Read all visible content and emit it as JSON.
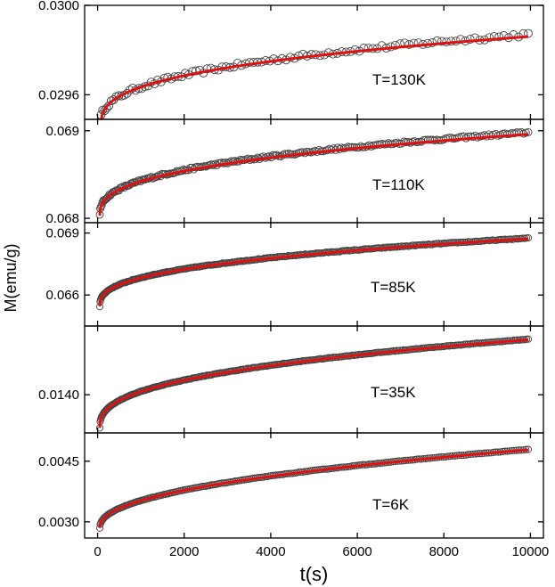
{
  "chart_data": {
    "type": "scatter",
    "xlabel": "t(s)",
    "ylabel": "M(emu/g)",
    "xlim": [
      -300,
      10300
    ],
    "x_ticks": [
      0,
      2000,
      4000,
      6000,
      8000,
      10000
    ],
    "x_tick_labels": [
      "0",
      "2000",
      "4000",
      "6000",
      "8000",
      "10000"
    ],
    "colors": {
      "data_marker": "#444444",
      "fit_line": "#e01010",
      "frame": "#000000"
    },
    "panels": [
      {
        "label": "T=130K",
        "ylim": [
          0.02949,
          0.03
        ],
        "y_ticks": [
          0.0296,
          0.03
        ],
        "y_tick_labels": [
          "0.0296",
          "0.0300"
        ],
        "data": {
          "t_start": 50,
          "t_end": 9950,
          "m_start": 0.02945,
          "m_end": 0.02987,
          "power": 0.35,
          "noise": 9e-06,
          "n_points": 110,
          "marker_radius": 4.5
        },
        "fit": {
          "t_start": 80,
          "t_end": 9950,
          "m_start": 0.02946,
          "m_end": 0.02986
        }
      },
      {
        "label": "T=110K",
        "ylim": [
          0.06795,
          0.06913
        ],
        "y_ticks": [
          0.068,
          0.069
        ],
        "y_tick_labels": [
          "0.068",
          "0.069"
        ],
        "data": {
          "t_start": 50,
          "t_end": 9950,
          "m_start": 0.06803,
          "m_end": 0.06898,
          "power": 0.37,
          "noise": 1.3e-05,
          "n_points": 230,
          "marker_radius": 4
        },
        "fit": {
          "t_start": 50,
          "t_end": 9950,
          "m_start": 0.06803,
          "m_end": 0.06896
        }
      },
      {
        "label": "T=85K",
        "ylim": [
          0.0645,
          0.0695
        ],
        "y_ticks": [
          0.066,
          0.069
        ],
        "y_tick_labels": [
          "0.066",
          "0.069"
        ],
        "data": {
          "t_start": 50,
          "t_end": 9950,
          "m_start": 0.06545,
          "m_end": 0.06875,
          "power": 0.37,
          "noise": 2e-05,
          "n_points": 300,
          "marker_radius": 3.6
        },
        "fit": {
          "t_start": 50,
          "t_end": 9950,
          "m_start": 0.06545,
          "m_end": 0.06872
        }
      },
      {
        "label": "T=35K",
        "ylim": [
          0.0125,
          0.0167
        ],
        "y_ticks": [
          0.014
        ],
        "y_tick_labels": [
          "0.0140"
        ],
        "data": {
          "t_start": 50,
          "t_end": 9950,
          "m_start": 0.0127,
          "m_end": 0.01618,
          "power": 0.38,
          "noise": 1.2e-05,
          "n_points": 300,
          "marker_radius": 3.6
        },
        "fit": {
          "t_start": 50,
          "t_end": 9950,
          "m_start": 0.0127,
          "m_end": 0.01616
        }
      },
      {
        "label": "T=6K",
        "ylim": [
          0.0026,
          0.0052
        ],
        "y_ticks": [
          0.003,
          0.0045
        ],
        "y_tick_labels": [
          "0.0030",
          "0.0045"
        ],
        "data": {
          "t_start": 50,
          "t_end": 9950,
          "m_start": 0.00285,
          "m_end": 0.00479,
          "power": 0.45,
          "noise": 6e-06,
          "n_points": 230,
          "marker_radius": 3.6
        },
        "fit": {
          "t_start": 50,
          "t_end": 9950,
          "m_start": 0.00285,
          "m_end": 0.00478
        }
      }
    ]
  }
}
